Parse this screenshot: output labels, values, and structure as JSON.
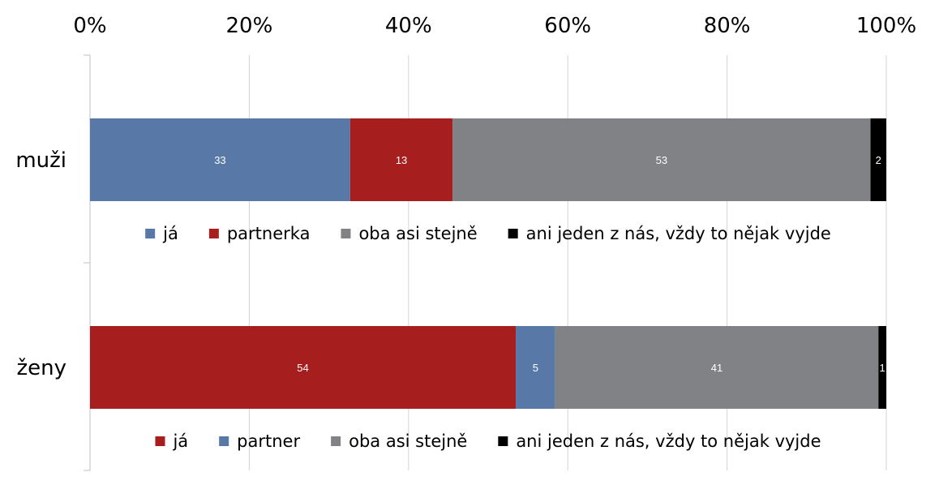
{
  "chart_data": {
    "type": "bar",
    "orientation": "horizontal",
    "stacked": true,
    "x_axis_position": "top",
    "xlim": [
      0,
      100
    ],
    "x_ticks": [
      "0%",
      "20%",
      "40%",
      "60%",
      "80%",
      "100%"
    ],
    "grid": true,
    "groups": [
      {
        "category": "muži",
        "segments": [
          {
            "name": "já",
            "value": 33,
            "color": "#5878a8"
          },
          {
            "name": "partnerka",
            "value": 13,
            "color": "#a61e1e"
          },
          {
            "name": "oba asi stejně",
            "value": 53,
            "color": "#808285"
          },
          {
            "name": "ani jeden z nás, vždy to nějak vyjde",
            "value": 2,
            "color": "#000000"
          }
        ],
        "legend": [
          {
            "name": "já",
            "color": "#5878a8"
          },
          {
            "name": "partnerka",
            "color": "#a61e1e"
          },
          {
            "name": "oba asi stejně",
            "color": "#808285"
          },
          {
            "name": "ani jeden z nás, vždy to nějak vyjde",
            "color": "#000000"
          }
        ]
      },
      {
        "category": "ženy",
        "segments": [
          {
            "name": "já",
            "value": 54,
            "color": "#a61e1e"
          },
          {
            "name": "partner",
            "value": 5,
            "color": "#5878a8"
          },
          {
            "name": "oba asi stejně",
            "value": 41,
            "color": "#808285"
          },
          {
            "name": "ani jeden z nás, vždy to nějak vyjde",
            "value": 1,
            "color": "#000000"
          }
        ],
        "legend": [
          {
            "name": "já",
            "color": "#a61e1e"
          },
          {
            "name": "partner",
            "color": "#5878a8"
          },
          {
            "name": "oba asi stejně",
            "color": "#808285"
          },
          {
            "name": "ani jeden z nás, vždy to nějak vyjde",
            "color": "#000000"
          }
        ]
      }
    ],
    "legend_placement": "below each bar"
  }
}
